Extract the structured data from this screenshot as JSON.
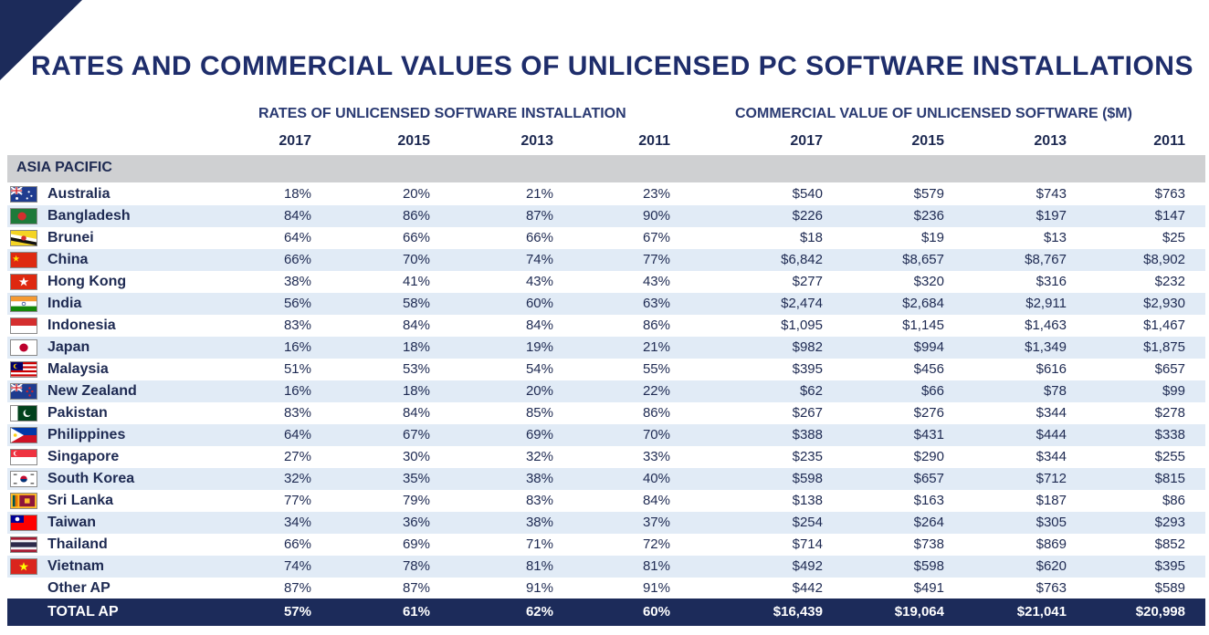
{
  "title": "RATES AND COMMERCIAL VALUES OF UNLICENSED PC SOFTWARE INSTALLATIONS",
  "groups": {
    "rates": "RATES OF UNLICENSED SOFTWARE INSTALLATION",
    "values": "COMMERCIAL VALUE OF UNLICENSED SOFTWARE ($M)"
  },
  "years": [
    "2017",
    "2015",
    "2013",
    "2011",
    "2017",
    "2015",
    "2013",
    "2011"
  ],
  "region": "ASIA PACIFIC",
  "colors": {
    "navy": "#1c2b5a",
    "row_alt": "#e1ebf6",
    "region_bg": "#cfd0d2"
  },
  "rows": [
    {
      "country": "Australia",
      "flag": "australia-flag",
      "values": [
        "18%",
        "20%",
        "21%",
        "23%",
        "$540",
        "$579",
        "$743",
        "$763"
      ]
    },
    {
      "country": "Bangladesh",
      "flag": "bangladesh-flag",
      "values": [
        "84%",
        "86%",
        "87%",
        "90%",
        "$226",
        "$236",
        "$197",
        "$147"
      ]
    },
    {
      "country": "Brunei",
      "flag": "brunei-flag",
      "values": [
        "64%",
        "66%",
        "66%",
        "67%",
        "$18",
        "$19",
        "$13",
        "$25"
      ]
    },
    {
      "country": "China",
      "flag": "china-flag",
      "values": [
        "66%",
        "70%",
        "74%",
        "77%",
        "$6,842",
        "$8,657",
        "$8,767",
        "$8,902"
      ]
    },
    {
      "country": "Hong Kong",
      "flag": "hong-kong-flag",
      "values": [
        "38%",
        "41%",
        "43%",
        "43%",
        "$277",
        "$320",
        "$316",
        "$232"
      ]
    },
    {
      "country": "India",
      "flag": "india-flag",
      "values": [
        "56%",
        "58%",
        "60%",
        "63%",
        "$2,474",
        "$2,684",
        "$2,911",
        "$2,930"
      ]
    },
    {
      "country": "Indonesia",
      "flag": "indonesia-flag",
      "values": [
        "83%",
        "84%",
        "84%",
        "86%",
        "$1,095",
        "$1,145",
        "$1,463",
        "$1,467"
      ]
    },
    {
      "country": "Japan",
      "flag": "japan-flag",
      "values": [
        "16%",
        "18%",
        "19%",
        "21%",
        "$982",
        "$994",
        "$1,349",
        "$1,875"
      ]
    },
    {
      "country": "Malaysia",
      "flag": "malaysia-flag",
      "values": [
        "51%",
        "53%",
        "54%",
        "55%",
        "$395",
        "$456",
        "$616",
        "$657"
      ]
    },
    {
      "country": "New Zealand",
      "flag": "new-zealand-flag",
      "values": [
        "16%",
        "18%",
        "20%",
        "22%",
        "$62",
        "$66",
        "$78",
        "$99"
      ]
    },
    {
      "country": "Pakistan",
      "flag": "pakistan-flag",
      "values": [
        "83%",
        "84%",
        "85%",
        "86%",
        "$267",
        "$276",
        "$344",
        "$278"
      ]
    },
    {
      "country": "Philippines",
      "flag": "philippines-flag",
      "values": [
        "64%",
        "67%",
        "69%",
        "70%",
        "$388",
        "$431",
        "$444",
        "$338"
      ]
    },
    {
      "country": "Singapore",
      "flag": "singapore-flag",
      "values": [
        "27%",
        "30%",
        "32%",
        "33%",
        "$235",
        "$290",
        "$344",
        "$255"
      ]
    },
    {
      "country": "South Korea",
      "flag": "south-korea-flag",
      "values": [
        "32%",
        "35%",
        "38%",
        "40%",
        "$598",
        "$657",
        "$712",
        "$815"
      ]
    },
    {
      "country": "Sri Lanka",
      "flag": "sri-lanka-flag",
      "values": [
        "77%",
        "79%",
        "83%",
        "84%",
        "$138",
        "$163",
        "$187",
        "$86"
      ]
    },
    {
      "country": "Taiwan",
      "flag": "taiwan-flag",
      "values": [
        "34%",
        "36%",
        "38%",
        "37%",
        "$254",
        "$264",
        "$305",
        "$293"
      ]
    },
    {
      "country": "Thailand",
      "flag": "thailand-flag",
      "values": [
        "66%",
        "69%",
        "71%",
        "72%",
        "$714",
        "$738",
        "$869",
        "$852"
      ]
    },
    {
      "country": "Vietnam",
      "flag": "vietnam-flag",
      "values": [
        "74%",
        "78%",
        "81%",
        "81%",
        "$492",
        "$598",
        "$620",
        "$395"
      ]
    },
    {
      "country": "Other AP",
      "flag": "",
      "values": [
        "87%",
        "87%",
        "91%",
        "91%",
        "$442",
        "$491",
        "$763",
        "$589"
      ]
    }
  ],
  "total": {
    "label": "TOTAL AP",
    "values": [
      "57%",
      "61%",
      "62%",
      "60%",
      "$16,439",
      "$19,064",
      "$21,041",
      "$20,998"
    ]
  }
}
